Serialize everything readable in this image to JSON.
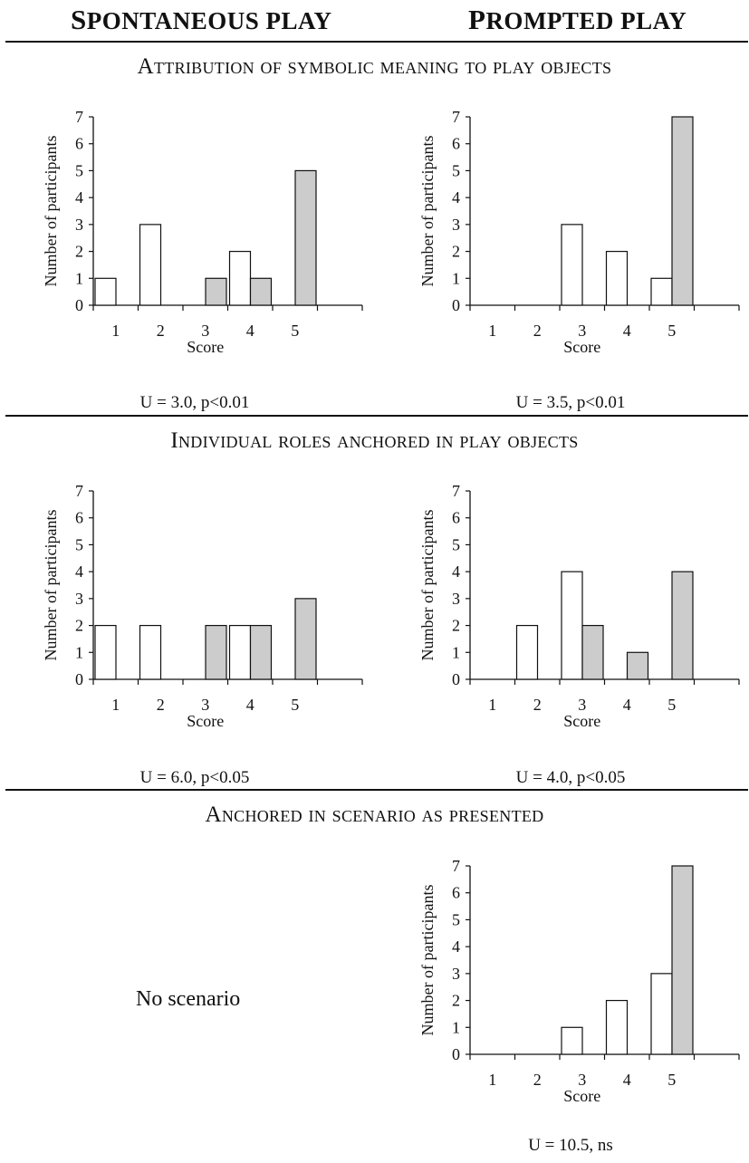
{
  "headers": {
    "left": "Spontaneous Play",
    "right": "Prompted Play"
  },
  "sections": [
    {
      "title": "Attribution of symbolic meaning to play objects"
    },
    {
      "title": "Individual roles anchored in play objects"
    },
    {
      "title": "Anchored in scenario as presented"
    }
  ],
  "colors": {
    "white_bar": "#ffffff",
    "gray_bar": "#cccccc",
    "stroke": "#111111"
  },
  "no_scenario": "No scenario",
  "chart_data": [
    {
      "type": "bar",
      "panel": "section1-spontaneous",
      "categories": [
        "1",
        "2",
        "3",
        "4",
        "5"
      ],
      "series": [
        {
          "values": [
            1,
            3,
            0,
            2,
            0
          ],
          "color": "#ffffff"
        },
        {
          "values": [
            0,
            0,
            1,
            1,
            5
          ],
          "color": "#cccccc"
        }
      ],
      "xlabel": "Score",
      "ylabel": "Number of participants",
      "ylim": [
        0,
        7
      ],
      "yticks": [
        "0",
        "1",
        "2",
        "3",
        "4",
        "5",
        "6",
        "7"
      ],
      "stat": "U = 3.0, p<0.01"
    },
    {
      "type": "bar",
      "panel": "section1-prompted",
      "categories": [
        "1",
        "2",
        "3",
        "4",
        "5"
      ],
      "series": [
        {
          "values": [
            0,
            0,
            3,
            2,
            1
          ],
          "color": "#ffffff"
        },
        {
          "values": [
            0,
            0,
            0,
            0,
            7
          ],
          "color": "#cccccc"
        }
      ],
      "xlabel": "Score",
      "ylabel": "Number of participants",
      "ylim": [
        0,
        7
      ],
      "yticks": [
        "0",
        "1",
        "2",
        "3",
        "4",
        "5",
        "6",
        "7"
      ],
      "stat": "U = 3.5, p<0.01"
    },
    {
      "type": "bar",
      "panel": "section2-spontaneous",
      "categories": [
        "1",
        "2",
        "3",
        "4",
        "5"
      ],
      "series": [
        {
          "values": [
            2,
            2,
            0,
            2,
            0
          ],
          "color": "#ffffff"
        },
        {
          "values": [
            0,
            0,
            2,
            2,
            3
          ],
          "color": "#cccccc"
        }
      ],
      "xlabel": "Score",
      "ylabel": "Number of participants",
      "ylim": [
        0,
        7
      ],
      "yticks": [
        "0",
        "1",
        "2",
        "3",
        "4",
        "5",
        "6",
        "7"
      ],
      "stat": "U = 6.0, p<0.05"
    },
    {
      "type": "bar",
      "panel": "section2-prompted",
      "categories": [
        "1",
        "2",
        "3",
        "4",
        "5"
      ],
      "series": [
        {
          "values": [
            0,
            2,
            4,
            0,
            0
          ],
          "color": "#ffffff"
        },
        {
          "values": [
            0,
            0,
            2,
            1,
            4
          ],
          "color": "#cccccc"
        }
      ],
      "xlabel": "Score",
      "ylabel": "Number of participants",
      "ylim": [
        0,
        7
      ],
      "yticks": [
        "0",
        "1",
        "2",
        "3",
        "4",
        "5",
        "6",
        "7"
      ],
      "stat": "U = 4.0, p<0.05"
    },
    {
      "type": "bar",
      "panel": "section3-prompted",
      "categories": [
        "1",
        "2",
        "3",
        "4",
        "5"
      ],
      "series": [
        {
          "values": [
            0,
            0,
            1,
            2,
            3
          ],
          "color": "#ffffff"
        },
        {
          "values": [
            0,
            0,
            0,
            0,
            7
          ],
          "color": "#cccccc"
        }
      ],
      "xlabel": "Score",
      "ylabel": "Number of participants",
      "ylim": [
        0,
        7
      ],
      "yticks": [
        "0",
        "1",
        "2",
        "3",
        "4",
        "5",
        "6",
        "7"
      ],
      "stat": "U = 10.5, ns"
    }
  ]
}
